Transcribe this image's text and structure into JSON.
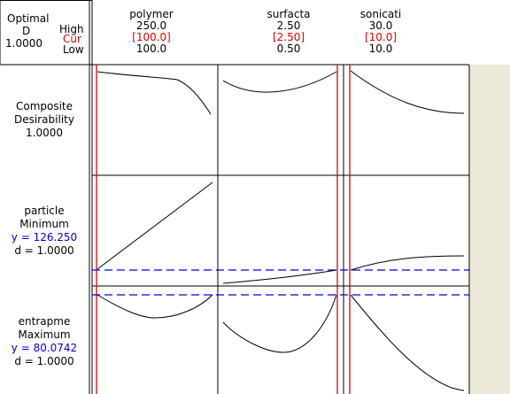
{
  "header": {
    "optimal_label": "Optimal",
    "d_label": "D",
    "d_value": "1.0000",
    "high_label": "High",
    "cur_label": "Cur",
    "low_label": "Low"
  },
  "factors": [
    {
      "name": "polymer",
      "high": "250.0",
      "cur": "[100.0]",
      "low": "100.0"
    },
    {
      "name": "surfacta",
      "high": "2.50",
      "cur": "[2.50]",
      "low": "0.50"
    },
    {
      "name": "sonicati",
      "high": "30.0",
      "cur": "[10.0]",
      "low": "10.0"
    }
  ],
  "responses": [
    {
      "line1": "Composite",
      "line2": "Desirability",
      "value": "1.0000",
      "d": ""
    },
    {
      "line1": "particle",
      "line2": "Minimum",
      "value": "y = 126.250",
      "d": "d = 1.0000"
    },
    {
      "line1": "entrapme",
      "line2": "Maximum",
      "value": "y = 80.0742",
      "d": "d = 1.0000"
    }
  ],
  "colors": {
    "grid": "#000000",
    "cur_line": "#e00000",
    "reference_line": "#0000e0",
    "curve": "#000000",
    "side_panel": "#ece9d8"
  }
}
